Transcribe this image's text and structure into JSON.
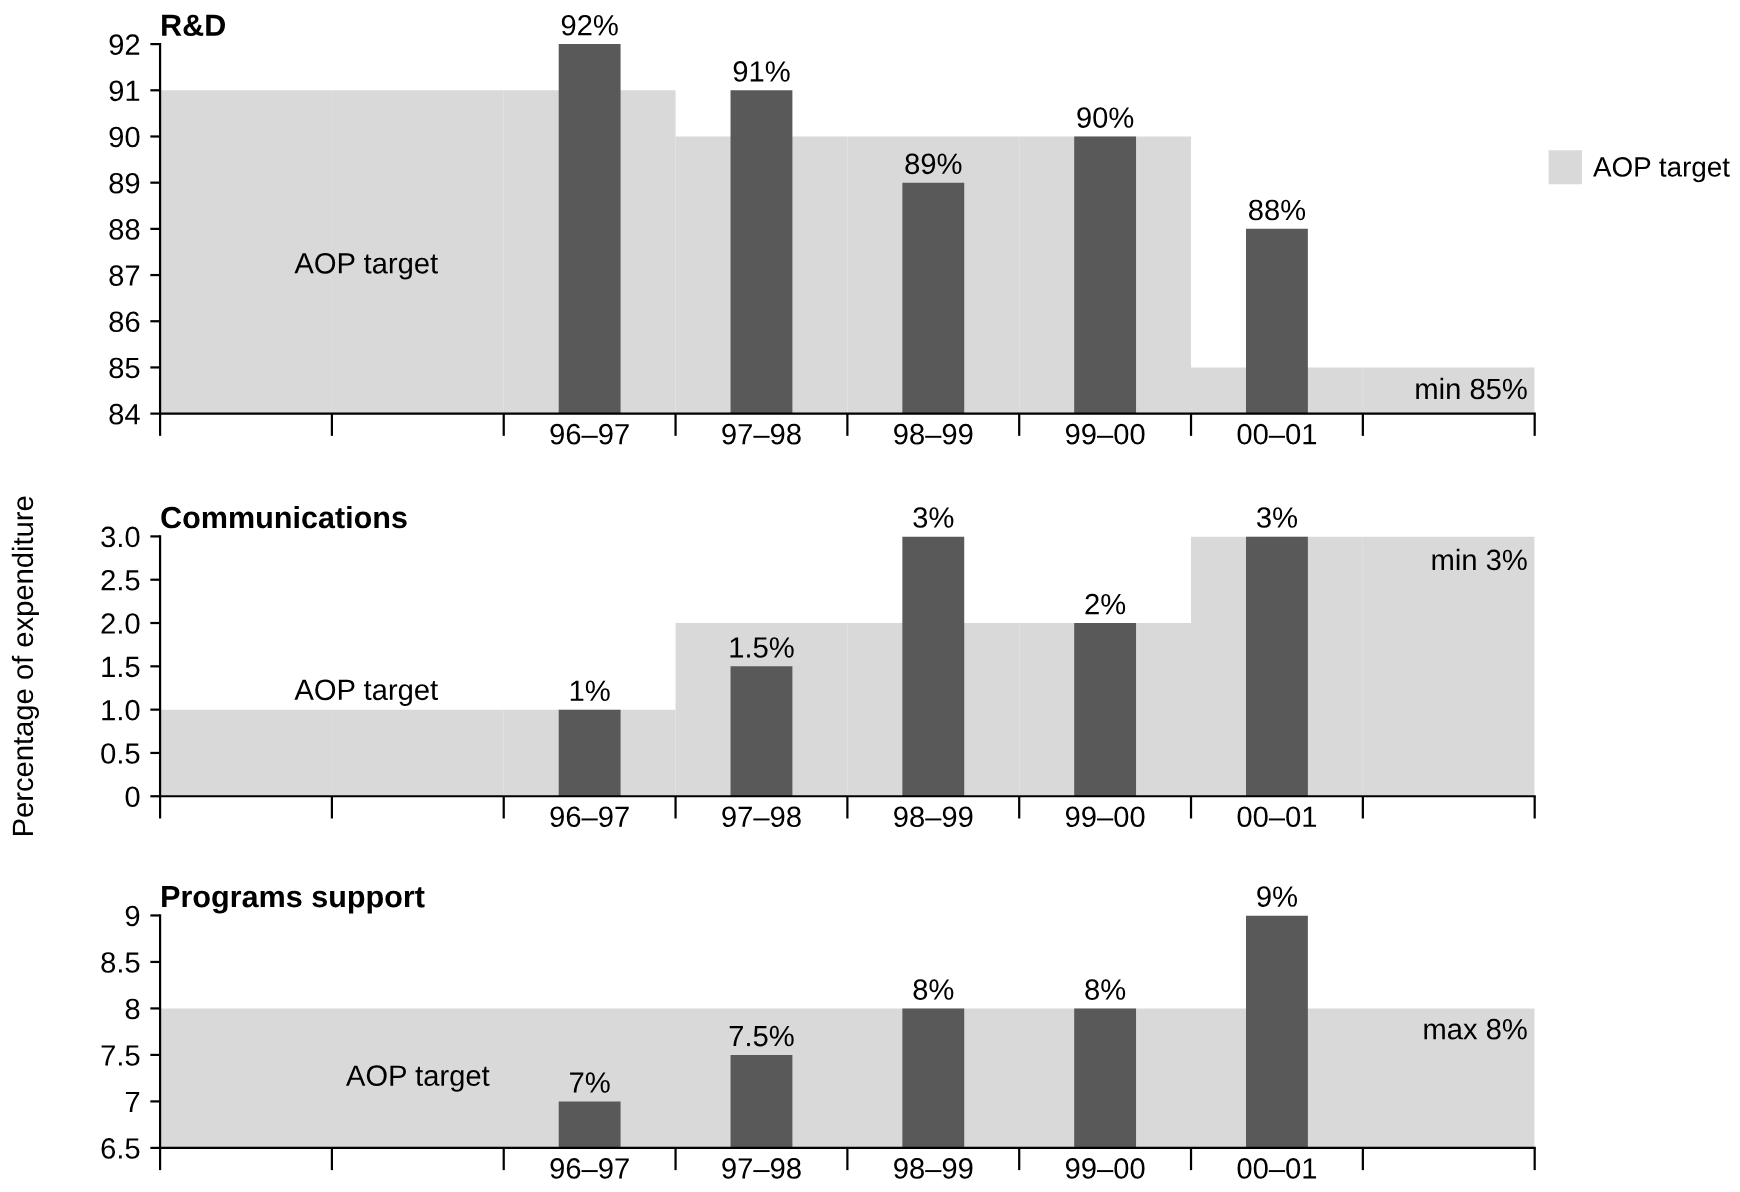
{
  "chart_data": [
    {
      "type": "bar",
      "title": "R&D",
      "categories": [
        null,
        null,
        "96–97",
        "97–98",
        "98–99",
        "99–00",
        "00–01",
        null
      ],
      "series": [
        {
          "name": "AOP target",
          "type": "bar",
          "color": "#d9d9d9",
          "values": [
            91,
            91,
            91,
            90,
            90,
            90,
            85,
            85
          ]
        },
        {
          "color": "#595959",
          "values": [
            null,
            null,
            92,
            91,
            89,
            90,
            88,
            null
          ],
          "value_labels": [
            null,
            null,
            "92%",
            "91%",
            "89%",
            "90%",
            "88%",
            null
          ]
        }
      ],
      "ylim": [
        84,
        92
      ],
      "yticks": [
        84,
        85,
        86,
        87,
        88,
        89,
        90,
        91,
        92
      ],
      "legend": "right",
      "grid": false,
      "annotations": [
        "AOP target",
        "min 85%"
      ]
    },
    {
      "type": "bar",
      "title": "Communications",
      "ylabel": "Percentage of expenditure",
      "categories": [
        null,
        null,
        "96–97",
        "97–98",
        "98–99",
        "99–00",
        "00–01",
        null
      ],
      "series": [
        {
          "type": "bar",
          "color": "#d9d9d9",
          "values": [
            1,
            1,
            1,
            2,
            2,
            2,
            3,
            3
          ]
        },
        {
          "color": "#595959",
          "values": [
            null,
            null,
            1,
            1.5,
            3,
            2,
            3,
            null
          ],
          "value_labels": [
            null,
            null,
            "1%",
            "1.5%",
            "3%",
            "2%",
            "3%",
            null
          ]
        }
      ],
      "ylim": [
        0,
        3
      ],
      "yticks": [
        0,
        0.5,
        {
          "value": 1,
          "label": "1.0"
        },
        1.5,
        {
          "value": 2,
          "label": "2.0"
        },
        2.5,
        {
          "value": 3,
          "label": "3.0"
        }
      ],
      "grid": false,
      "annotations": [
        "AOP target",
        "min 3%"
      ]
    },
    {
      "type": "bar",
      "title": "Programs support",
      "categories": [
        null,
        null,
        "96–97",
        "97–98",
        "98–99",
        "99–00",
        "00–01",
        null
      ],
      "series": [
        {
          "color": "#595959",
          "values": [
            null,
            null,
            7,
            7.5,
            8,
            8,
            9,
            null
          ],
          "value_labels": [
            null,
            null,
            "7%",
            "7.5%",
            "8%",
            "8%",
            "9%",
            null
          ]
        }
      ],
      "bands": [
        {
          "axis": "y",
          "from": 6.5,
          "to": 8,
          "color": "#d9d9d9",
          "label": "AOP target"
        }
      ],
      "ylim": [
        6.5,
        9
      ],
      "yticks": [
        6.5,
        7,
        7.5,
        8,
        8.5,
        9
      ],
      "grid": false,
      "annotations": [
        "max 8%"
      ]
    }
  ]
}
